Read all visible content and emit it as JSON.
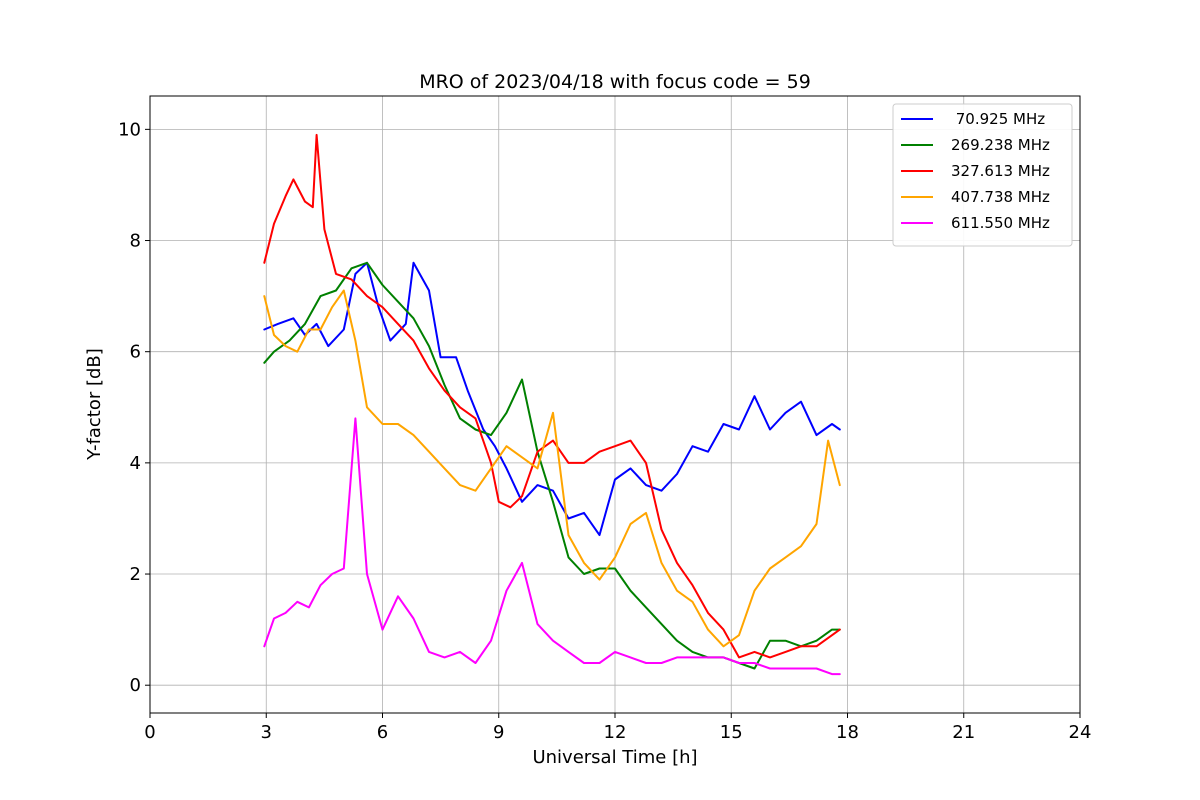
{
  "chart_data": {
    "type": "line",
    "title": "MRO of 2023/04/18 with focus code = 59",
    "xlabel": "Universal Time [h]",
    "ylabel": "Y-factor [dB]",
    "xlim": [
      0,
      24
    ],
    "ylim": [
      -0.5,
      10.6
    ],
    "xticks": [
      0,
      3,
      6,
      9,
      12,
      15,
      18,
      21,
      24
    ],
    "xtick_labels": [
      "0",
      "3",
      "6",
      "9",
      "12",
      "15",
      "18",
      "21",
      "24"
    ],
    "yticks": [
      0,
      2,
      4,
      6,
      8,
      10
    ],
    "ytick_labels": [
      "0",
      "2",
      "4",
      "6",
      "8",
      "10"
    ],
    "grid": true,
    "legend_position": "top-right",
    "series": [
      {
        "name": " 70.925 MHz",
        "color": "#0000ff",
        "x": [
          2.95,
          3.3,
          3.7,
          4.0,
          4.3,
          4.6,
          5.0,
          5.3,
          5.6,
          5.9,
          6.2,
          6.6,
          6.8,
          7.2,
          7.5,
          7.9,
          8.2,
          8.6,
          8.9,
          9.2,
          9.6,
          10.0,
          10.4,
          10.8,
          11.2,
          11.6,
          12.0,
          12.4,
          12.8,
          13.2,
          13.6,
          14.0,
          14.4,
          14.8,
          15.2,
          15.6,
          16.0,
          16.4,
          16.8,
          17.2,
          17.6,
          17.8
        ],
        "y": [
          6.4,
          6.5,
          6.6,
          6.3,
          6.5,
          6.1,
          6.4,
          7.4,
          7.6,
          6.8,
          6.2,
          6.5,
          7.6,
          7.1,
          5.9,
          5.9,
          5.3,
          4.6,
          4.3,
          3.9,
          3.3,
          3.6,
          3.5,
          3.0,
          3.1,
          2.7,
          3.7,
          3.9,
          3.6,
          3.5,
          3.8,
          4.3,
          4.2,
          4.7,
          4.6,
          5.2,
          4.6,
          4.9,
          5.1,
          4.5,
          4.7,
          4.6
        ]
      },
      {
        "name": "269.238 MHz",
        "color": "#008000",
        "x": [
          2.95,
          3.2,
          3.6,
          4.0,
          4.4,
          4.8,
          5.2,
          5.6,
          6.0,
          6.4,
          6.8,
          7.2,
          7.6,
          8.0,
          8.4,
          8.8,
          9.2,
          9.6,
          10.0,
          10.4,
          10.8,
          11.2,
          11.6,
          12.0,
          12.4,
          12.8,
          13.2,
          13.6,
          14.0,
          14.4,
          14.8,
          15.2,
          15.6,
          16.0,
          16.4,
          16.8,
          17.2,
          17.6,
          17.8
        ],
        "y": [
          5.8,
          6.0,
          6.2,
          6.5,
          7.0,
          7.1,
          7.5,
          7.6,
          7.2,
          6.9,
          6.6,
          6.1,
          5.4,
          4.8,
          4.6,
          4.5,
          4.9,
          5.5,
          4.2,
          3.3,
          2.3,
          2.0,
          2.1,
          2.1,
          1.7,
          1.4,
          1.1,
          0.8,
          0.6,
          0.5,
          0.5,
          0.4,
          0.3,
          0.8,
          0.8,
          0.7,
          0.8,
          1.0,
          1.0
        ]
      },
      {
        "name": "327.613 MHz",
        "color": "#ff0000",
        "x": [
          2.95,
          3.2,
          3.5,
          3.7,
          4.0,
          4.2,
          4.3,
          4.5,
          4.8,
          5.2,
          5.6,
          6.0,
          6.4,
          6.8,
          7.2,
          7.6,
          8.0,
          8.4,
          8.8,
          9.0,
          9.3,
          9.6,
          10.0,
          10.4,
          10.8,
          11.2,
          11.6,
          12.0,
          12.4,
          12.8,
          13.2,
          13.6,
          14.0,
          14.4,
          14.8,
          15.2,
          15.6,
          16.0,
          16.4,
          16.8,
          17.2,
          17.6,
          17.8
        ],
        "y": [
          7.6,
          8.3,
          8.8,
          9.1,
          8.7,
          8.6,
          9.9,
          8.2,
          7.4,
          7.3,
          7.0,
          6.8,
          6.5,
          6.2,
          5.7,
          5.3,
          5.0,
          4.8,
          4.0,
          3.3,
          3.2,
          3.4,
          4.2,
          4.4,
          4.0,
          4.0,
          4.2,
          4.3,
          4.4,
          4.0,
          2.8,
          2.2,
          1.8,
          1.3,
          1.0,
          0.5,
          0.6,
          0.5,
          0.6,
          0.7,
          0.7,
          0.9,
          1.0
        ]
      },
      {
        "name": "407.738 MHz",
        "color": "#ffa500",
        "x": [
          2.95,
          3.2,
          3.5,
          3.8,
          4.1,
          4.4,
          4.7,
          5.0,
          5.3,
          5.6,
          6.0,
          6.4,
          6.8,
          7.2,
          7.6,
          8.0,
          8.4,
          8.8,
          9.2,
          9.6,
          10.0,
          10.4,
          10.8,
          11.2,
          11.6,
          12.0,
          12.4,
          12.8,
          13.2,
          13.6,
          14.0,
          14.4,
          14.8,
          15.2,
          15.6,
          16.0,
          16.4,
          16.8,
          17.2,
          17.5,
          17.8
        ],
        "y": [
          7.0,
          6.3,
          6.1,
          6.0,
          6.4,
          6.4,
          6.8,
          7.1,
          6.2,
          5.0,
          4.7,
          4.7,
          4.5,
          4.2,
          3.9,
          3.6,
          3.5,
          3.9,
          4.3,
          4.1,
          3.9,
          4.9,
          2.7,
          2.2,
          1.9,
          2.3,
          2.9,
          3.1,
          2.2,
          1.7,
          1.5,
          1.0,
          0.7,
          0.9,
          1.7,
          2.1,
          2.3,
          2.5,
          2.9,
          4.4,
          3.6
        ]
      },
      {
        "name": "611.550 MHz",
        "color": "#ff00ff",
        "x": [
          2.95,
          3.2,
          3.5,
          3.8,
          4.1,
          4.4,
          4.7,
          5.0,
          5.3,
          5.6,
          6.0,
          6.4,
          6.8,
          7.2,
          7.6,
          8.0,
          8.4,
          8.8,
          9.2,
          9.6,
          10.0,
          10.4,
          10.8,
          11.2,
          11.6,
          12.0,
          12.4,
          12.8,
          13.2,
          13.6,
          14.0,
          14.4,
          14.8,
          15.2,
          15.6,
          16.0,
          16.4,
          16.8,
          17.2,
          17.6,
          17.8
        ],
        "y": [
          0.7,
          1.2,
          1.3,
          1.5,
          1.4,
          1.8,
          2.0,
          2.1,
          4.8,
          2.0,
          1.0,
          1.6,
          1.2,
          0.6,
          0.5,
          0.6,
          0.4,
          0.8,
          1.7,
          2.2,
          1.1,
          0.8,
          0.6,
          0.4,
          0.4,
          0.6,
          0.5,
          0.4,
          0.4,
          0.5,
          0.5,
          0.5,
          0.5,
          0.4,
          0.4,
          0.3,
          0.3,
          0.3,
          0.3,
          0.2,
          0.2
        ]
      }
    ]
  }
}
